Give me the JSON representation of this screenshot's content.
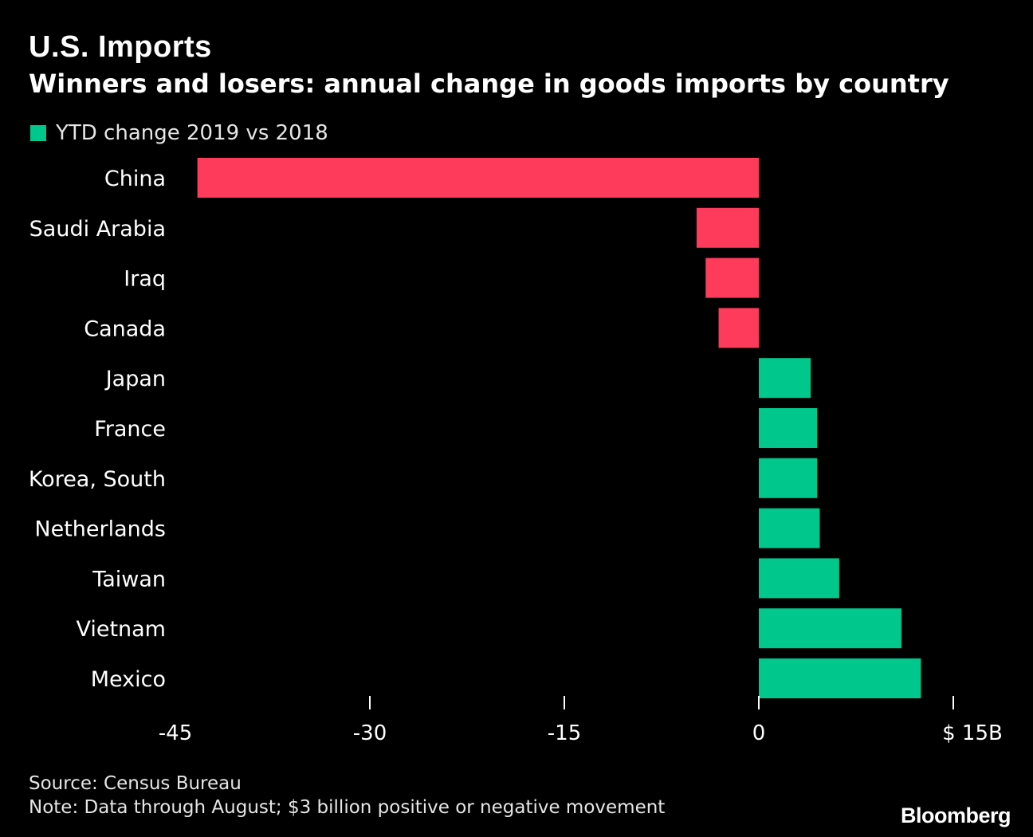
{
  "title": "U.S. Imports",
  "subtitle": "Winners and losers: annual change in goods imports by country",
  "legend": {
    "label": "YTD change 2019 vs 2018",
    "color": "#00c88c"
  },
  "colors": {
    "positive": "#00c88c",
    "negative": "#ff3b5c",
    "background": "#000000",
    "text": "#ffffff"
  },
  "chart_data": {
    "type": "bar",
    "orientation": "horizontal",
    "title": "U.S. Imports",
    "subtitle": "Winners and losers: annual change in goods imports by country",
    "categories": [
      "China",
      "Saudi Arabia",
      "Iraq",
      "Canada",
      "Japan",
      "France",
      "Korea, South",
      "Netherlands",
      "Taiwan",
      "Vietnam",
      "Mexico"
    ],
    "values": [
      -43.3,
      -4.8,
      -4.1,
      -3.1,
      4.0,
      4.5,
      4.5,
      4.7,
      6.2,
      11.0,
      12.5
    ],
    "series_name": "YTD change 2019 vs 2018",
    "xlim": [
      -45,
      15
    ],
    "xticks": [
      -45,
      -30,
      -15,
      0,
      15
    ],
    "xtick_labels": [
      "-45",
      "-30",
      "-15",
      "0",
      "$ 15B"
    ],
    "xlabel": "",
    "ylabel": "",
    "grid": false,
    "legend_position": "top-left"
  },
  "footer": {
    "source": "Source: Census Bureau",
    "note": "Note: Data through August; $3 billion positive or negative movement"
  },
  "brand": "Bloomberg"
}
